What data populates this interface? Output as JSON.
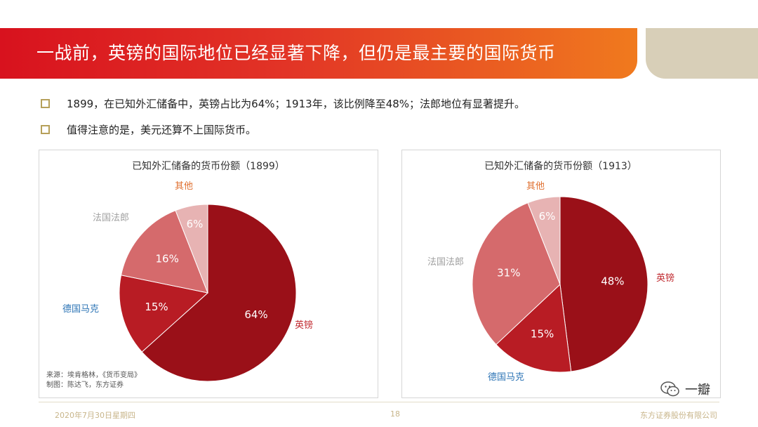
{
  "header": {
    "title": "一战前，英镑的国际地位已经显著下降，但仍是最主要的国际货币"
  },
  "bullets": [
    "1899，在已知外汇储备中，英镑占比为64%；1913年，该比例降至48%；法郎地位有显著提升。",
    "值得注意的是，美元还算不上国际货币。"
  ],
  "chart_data": [
    {
      "type": "pie",
      "title": "已知外汇储备的货币份额（1899）",
      "slices": [
        {
          "name": "英镑",
          "value": 64,
          "label": "64%",
          "color": "#9a1018",
          "name_color": "#c0282e"
        },
        {
          "name": "德国马克",
          "value": 15,
          "label": "15%",
          "color": "#b81c24",
          "name_color": "#2e75b6"
        },
        {
          "name": "法国法郎",
          "value": 16,
          "label": "16%",
          "color": "#d56a6c",
          "name_color": "#a0a0a0"
        },
        {
          "name": "其他",
          "value": 6,
          "label": "6%",
          "color": "#e7b3b3",
          "name_color": "#e07030"
        }
      ]
    },
    {
      "type": "pie",
      "title": "已知外汇储备的货币份额（1913）",
      "slices": [
        {
          "name": "英镑",
          "value": 48,
          "label": "48%",
          "color": "#9a1018",
          "name_color": "#c0282e"
        },
        {
          "name": "德国马克",
          "value": 15,
          "label": "15%",
          "color": "#b81c24",
          "name_color": "#2e75b6"
        },
        {
          "name": "法国法郎",
          "value": 31,
          "label": "31%",
          "color": "#d56a6c",
          "name_color": "#a0a0a0"
        },
        {
          "name": "其他",
          "value": 6,
          "label": "6%",
          "color": "#e7b3b3",
          "name_color": "#e07030"
        }
      ]
    }
  ],
  "source": {
    "line1": "来源：埃肯格林，《货币变局》",
    "line2": "制图：陈达飞，东方证券"
  },
  "footer": {
    "date": "2020年7月30日星期四",
    "page": "18",
    "company": "东方证券股份有限公司"
  },
  "watermark": {
    "icon": "wechat-icon",
    "text": "一瓣"
  }
}
